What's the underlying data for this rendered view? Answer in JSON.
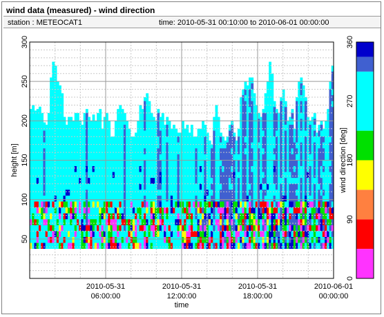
{
  "window": {
    "title": "wind data (measured) - wind direction",
    "station": "station : METEOCAT1",
    "time_range": "time: 2010-05-31 00:10:00 to 2010-06-01 00:00:00"
  },
  "chart_data": {
    "type": "heatmap",
    "xlabel": "time",
    "ylabel": "height [m]",
    "ylim": [
      0,
      300
    ],
    "yticks": [
      50,
      100,
      150,
      200,
      250,
      300
    ],
    "xticks": [
      {
        "line1": "2010-05-31",
        "line2": "06:00:00",
        "hour": 6
      },
      {
        "line1": "2010-05-31",
        "line2": "12:00:00",
        "hour": 12
      },
      {
        "line1": "2010-05-31",
        "line2": "18:00:00",
        "hour": 18
      },
      {
        "line1": "2010-06-01",
        "line2": "00:00:00",
        "hour": 24
      }
    ],
    "xlim_hours": [
      0,
      24
    ],
    "grid": true,
    "colorbar": {
      "label": "wind direction [deg]",
      "range": [
        0,
        360
      ],
      "ticks": [
        0,
        90,
        180,
        270,
        360
      ],
      "bins": [
        {
          "from": 0,
          "to": 45,
          "color": "#ff33ff"
        },
        {
          "from": 45,
          "to": 90,
          "color": "#ff0000"
        },
        {
          "from": 90,
          "to": 135,
          "color": "#ff8040"
        },
        {
          "from": 135,
          "to": 180,
          "color": "#ffff00"
        },
        {
          "from": 180,
          "to": 225,
          "color": "#00e000"
        },
        {
          "from": 225,
          "to": 315,
          "color": "#00ffff"
        },
        {
          "from": 315,
          "to": 337.5,
          "color": "#4060d0"
        },
        {
          "from": 337.5,
          "to": 360,
          "color": "#0000cc"
        }
      ]
    },
    "data_summary": {
      "lowest_range_gate_m": 38,
      "columns_per_hour": 6,
      "profile_top_m": [
        215,
        220,
        213,
        215,
        218,
        210,
        198,
        195,
        210,
        255,
        275,
        270,
        250,
        245,
        235,
        205,
        195,
        205,
        205,
        200,
        210,
        210,
        200,
        195,
        210,
        215,
        205,
        200,
        208,
        200,
        210,
        215,
        190,
        205,
        210,
        200,
        180,
        180,
        200,
        215,
        220,
        215,
        210,
        200,
        190,
        180,
        180,
        185,
        200,
        220,
        215,
        230,
        235,
        225,
        210,
        205,
        200,
        215,
        205,
        210,
        195,
        205,
        200,
        190,
        195,
        190,
        185,
        185,
        200,
        190,
        195,
        185,
        195,
        180,
        180,
        190,
        190,
        200,
        195,
        185,
        175,
        170,
        205,
        220,
        205,
        185,
        180,
        175,
        180,
        195,
        200,
        185,
        175,
        190,
        230,
        240,
        250,
        245,
        255,
        255,
        235,
        220,
        210,
        205,
        215,
        235,
        250,
        275,
        260,
        225,
        215,
        210,
        230,
        240,
        225,
        200,
        205,
        215,
        190,
        230,
        250,
        255,
        245,
        230,
        205,
        200,
        205,
        210,
        185,
        195,
        200,
        190,
        200,
        215,
        250,
        270
      ],
      "dominant_direction_deg": 250,
      "notes": "Cyan (225-315 deg) dominates most of the profile; blue-grey (315-337.5 deg) columns become prevalent after about 14:00; mixed green/red/yellow/magenta readings occur below about 100 m."
    }
  }
}
